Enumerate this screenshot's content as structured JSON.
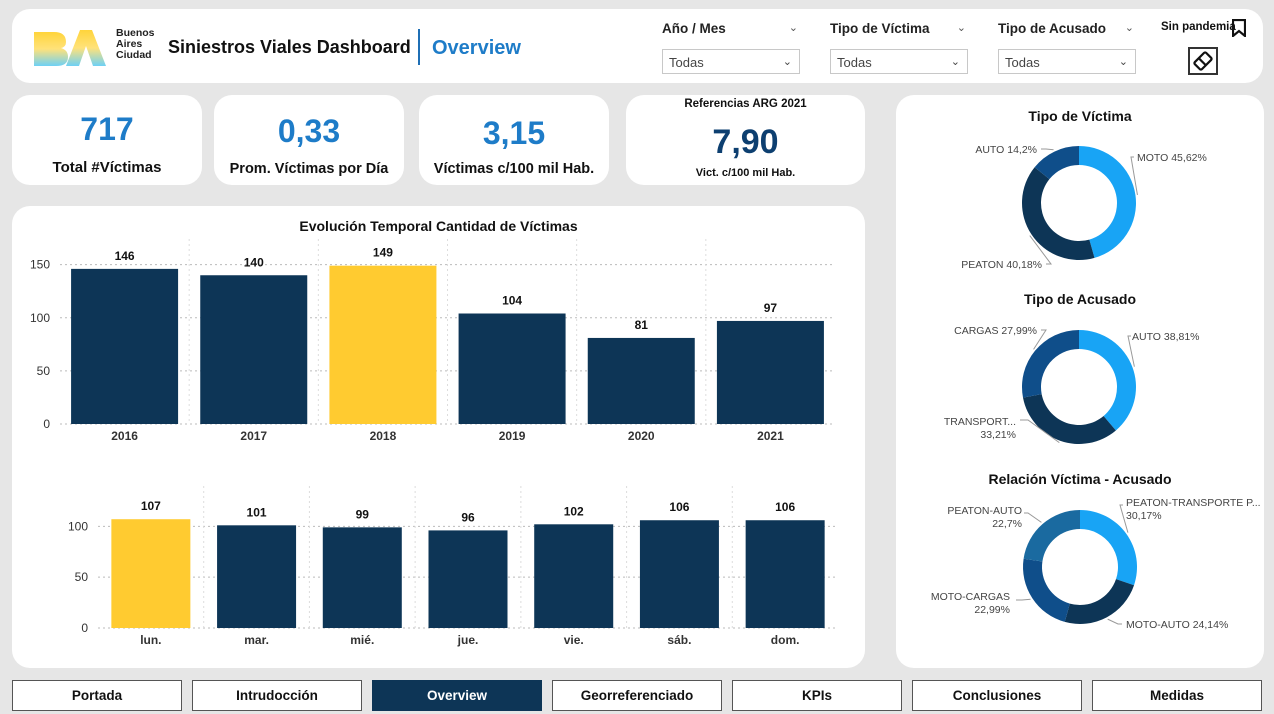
{
  "header": {
    "logo_text_line1": "Buenos",
    "logo_text_line2": "Aires",
    "logo_text_line3": "Ciudad",
    "title": "Siniestros Viales Dashboard",
    "subtitle": "Overview",
    "filters": [
      {
        "label": "Año / Mes",
        "value": "Todas"
      },
      {
        "label": "Tipo de Víctima",
        "value": "Todas"
      },
      {
        "label": "Tipo de Acusado",
        "value": "Todas"
      }
    ],
    "pandemia_label": "Sin pandemia"
  },
  "kpis": {
    "total": {
      "value": "717",
      "label": "Total #Víctimas"
    },
    "per_day": {
      "value": "0,33",
      "label": "Prom. Víctimas por Día"
    },
    "per_100k": {
      "value": "3,15",
      "label": "Víctimas c/100 mil Hab."
    },
    "reference": {
      "header": "Referencias ARG 2021",
      "value": "7,90",
      "label": "Vict. c/100 mil Hab."
    }
  },
  "colors": {
    "dark_navy": "#0d3556",
    "yellow": "#ffcb30",
    "light_blue": "#18a4f5",
    "mid_blue": "#0f4e8a",
    "accent": "#1e7cc8"
  },
  "chart_data": [
    {
      "type": "bar",
      "title": "Evolución Temporal Cantidad de Víctimas",
      "categories": [
        "2016",
        "2017",
        "2018",
        "2019",
        "2020",
        "2021"
      ],
      "values": [
        146,
        140,
        149,
        104,
        81,
        97
      ],
      "highlight_index": 2,
      "yticks": [
        0,
        50,
        100,
        150
      ],
      "ylim": [
        0,
        160
      ]
    },
    {
      "type": "bar",
      "title": "",
      "categories": [
        "lun.",
        "mar.",
        "mié.",
        "jue.",
        "vie.",
        "sáb.",
        "dom."
      ],
      "values": [
        107,
        101,
        99,
        96,
        102,
        106,
        106
      ],
      "highlight_index": 0,
      "yticks": [
        0,
        50,
        100
      ],
      "ylim": [
        0,
        120
      ]
    },
    {
      "type": "pie",
      "title": "Tipo de Víctima",
      "slices": [
        {
          "name": "MOTO",
          "value": 45.62,
          "label": "MOTO 45,62%",
          "color": "#18a4f5"
        },
        {
          "name": "PEATON",
          "value": 40.18,
          "label": "PEATON 40,18%",
          "color": "#0d3556"
        },
        {
          "name": "AUTO",
          "value": 14.2,
          "label": "AUTO 14,2%",
          "color": "#0f4e8a"
        }
      ]
    },
    {
      "type": "pie",
      "title": "Tipo de Acusado",
      "slices": [
        {
          "name": "AUTO",
          "value": 38.81,
          "label": "AUTO 38,81%",
          "color": "#18a4f5"
        },
        {
          "name": "TRANSPORTE",
          "value": 33.21,
          "label_line1": "TRANSPORT...",
          "label_line2": "33,21%",
          "color": "#0d3556"
        },
        {
          "name": "CARGAS",
          "value": 27.99,
          "label": "CARGAS 27,99%",
          "color": "#0f4e8a"
        }
      ]
    },
    {
      "type": "pie",
      "title": "Relación Víctima - Acusado",
      "slices": [
        {
          "name": "PEATON-TRANSPORTE",
          "value": 30.17,
          "label_line1": "PEATON-TRANSPORTE P...",
          "label_line2": "30,17%",
          "color": "#18a4f5"
        },
        {
          "name": "MOTO-AUTO",
          "value": 24.14,
          "label": "MOTO-AUTO 24,14%",
          "color": "#0d3556"
        },
        {
          "name": "MOTO-CARGAS",
          "value": 22.99,
          "label_line1": "MOTO-CARGAS",
          "label_line2": "22,99%",
          "color": "#0f4e8a"
        },
        {
          "name": "PEATON-AUTO",
          "value": 22.7,
          "label_line1": "PEATON-AUTO",
          "label_line2": "22,7%",
          "color": "#1a6aa0"
        }
      ]
    }
  ],
  "nav": {
    "items": [
      {
        "label": "Portada",
        "active": false
      },
      {
        "label": "Intrudocción",
        "active": false
      },
      {
        "label": "Overview",
        "active": true
      },
      {
        "label": "Georreferenciado",
        "active": false
      },
      {
        "label": "KPIs",
        "active": false
      },
      {
        "label": "Conclusiones",
        "active": false
      },
      {
        "label": "Medidas",
        "active": false
      }
    ]
  }
}
